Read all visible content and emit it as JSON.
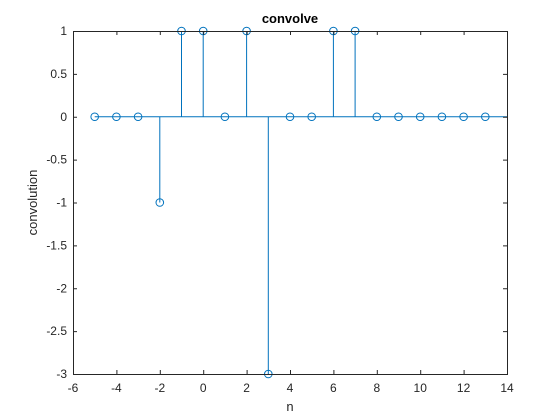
{
  "chart_data": {
    "type": "stem",
    "title": "convolve",
    "xlabel": "n",
    "ylabel": "convolution",
    "xlim": [
      -6,
      14
    ],
    "ylim": [
      -3,
      1
    ],
    "xticks": [
      -6,
      -4,
      -2,
      0,
      2,
      4,
      6,
      8,
      10,
      12,
      14
    ],
    "xtick_labels": [
      "-6",
      "-4",
      "-2",
      "0",
      "2",
      "4",
      "6",
      "8",
      "10",
      "12",
      "14"
    ],
    "yticks": [
      -3,
      -2.5,
      -2,
      -1.5,
      -1,
      -0.5,
      0,
      0.5,
      1
    ],
    "ytick_labels": [
      "-3",
      "-2.5",
      "-2",
      "-1.5",
      "-1",
      "-0.5",
      "0",
      "0.5",
      "1"
    ],
    "grid": false,
    "series": [
      {
        "x": [
          -5,
          -4,
          -3,
          -2,
          -1,
          0,
          1,
          2,
          3,
          4,
          5,
          6,
          7,
          8,
          9,
          10,
          11,
          12,
          13
        ],
        "y": [
          0,
          0,
          0,
          -1,
          1,
          1,
          0,
          1,
          -3,
          0,
          0,
          1,
          1,
          0,
          0,
          0,
          0,
          0,
          0
        ],
        "color": "#0072bd",
        "marker": "circle-open"
      }
    ]
  }
}
